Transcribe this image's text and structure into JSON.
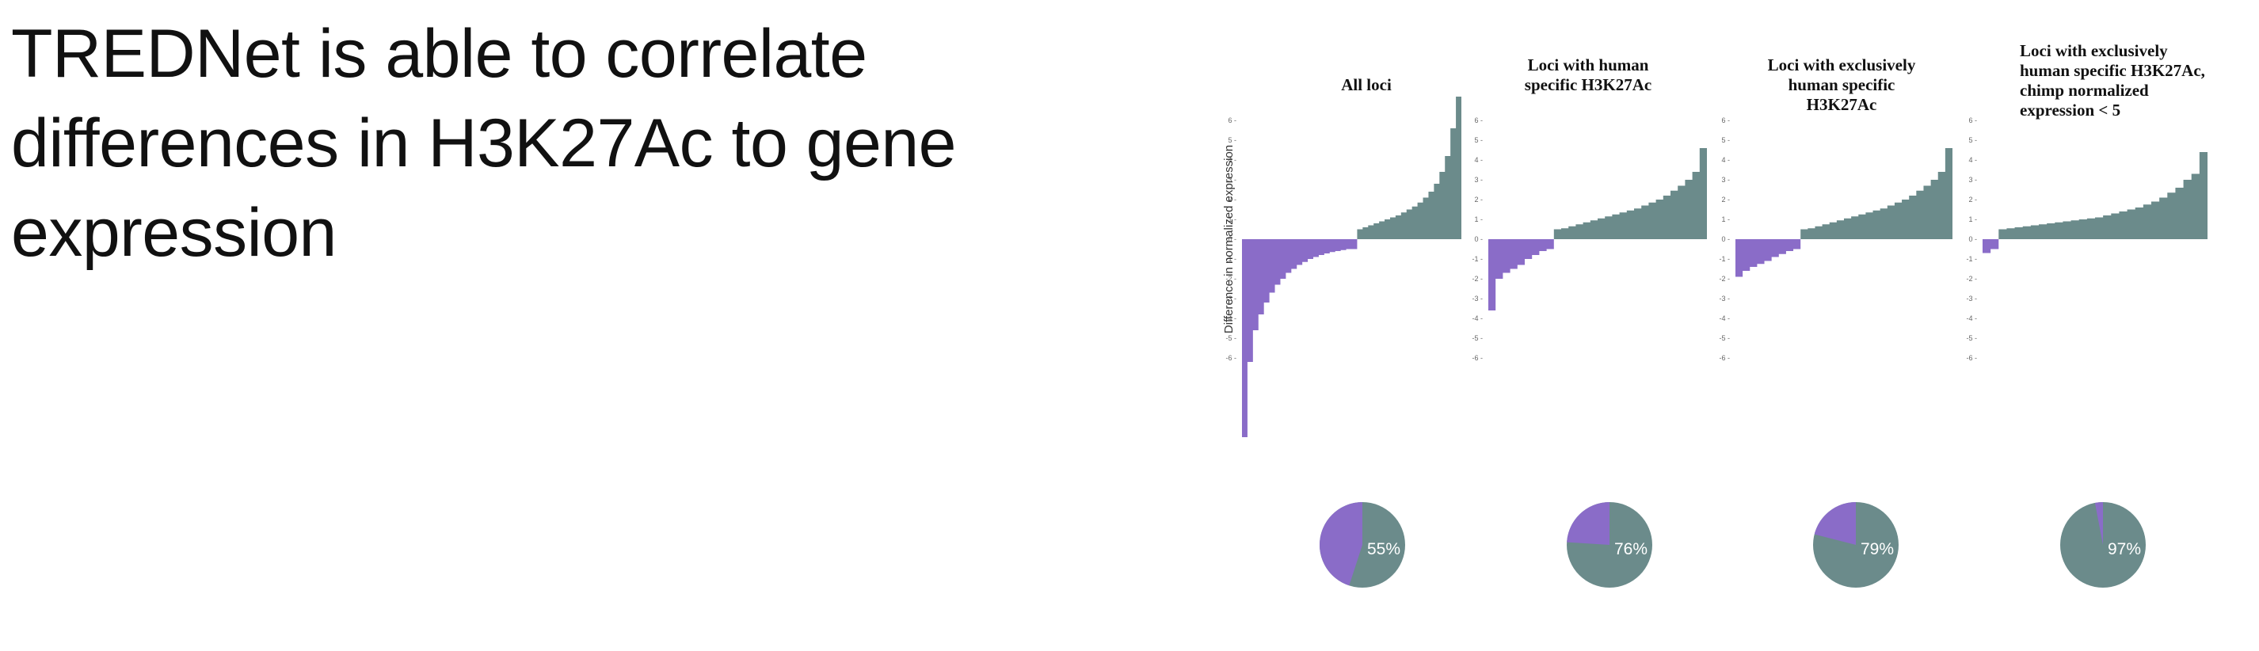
{
  "slide": {
    "title": "TREDNet is able to correlate\ndifferences in H3K27Ac to gene\nexpression"
  },
  "colors": {
    "negative": "#8a6cc8",
    "positive": "#6b8b8b",
    "tick_text": "#666666"
  },
  "chart_data": [
    {
      "type": "area",
      "title": "All loci",
      "ylabel": "Difference in normalized expression",
      "ylim": [
        -10,
        6
      ],
      "yticks": [
        6,
        5,
        4,
        3,
        2,
        1,
        0,
        -1,
        -2,
        -3,
        -4,
        -5,
        -6
      ],
      "series": [
        {
          "values": [
            -10,
            -6.2,
            -4.6,
            -3.8,
            -3.2,
            -2.7,
            -2.3,
            -2.0,
            -1.7,
            -1.5,
            -1.3,
            -1.15,
            -1.0,
            -0.9,
            -0.8,
            -0.72,
            -0.65,
            -0.6,
            -0.55,
            -0.5,
            -0.5
          ]
        },
        {
          "values": [
            0.5,
            0.6,
            0.7,
            0.8,
            0.9,
            1.0,
            1.1,
            1.2,
            1.35,
            1.5,
            1.65,
            1.85,
            2.1,
            2.4,
            2.8,
            3.4,
            4.2,
            5.6,
            7.2
          ]
        }
      ],
      "pie": {
        "values": [
          45,
          55
        ],
        "label": "55%"
      }
    },
    {
      "type": "area",
      "title": "Loci with human specific H3K27Ac",
      "ylim": [
        -10,
        6
      ],
      "yticks": [
        6,
        5,
        4,
        3,
        2,
        1,
        0,
        -1,
        -2,
        -3,
        -4,
        -5,
        -6
      ],
      "series": [
        {
          "values": [
            -3.6,
            -2.0,
            -1.7,
            -1.5,
            -1.3,
            -1.0,
            -0.8,
            -0.6,
            -0.5
          ]
        },
        {
          "values": [
            0.5,
            0.55,
            0.65,
            0.75,
            0.85,
            0.95,
            1.05,
            1.15,
            1.25,
            1.35,
            1.45,
            1.55,
            1.7,
            1.85,
            2.0,
            2.2,
            2.45,
            2.7,
            3.0,
            3.4,
            4.6
          ]
        }
      ],
      "pie": {
        "values": [
          24,
          76
        ],
        "label": "76%"
      }
    },
    {
      "type": "area",
      "title": "Loci with exclusively human specific H3K27Ac",
      "ylim": [
        -10,
        6
      ],
      "yticks": [
        6,
        5,
        4,
        3,
        2,
        1,
        0,
        -1,
        -2,
        -3,
        -4,
        -5,
        -6
      ],
      "series": [
        {
          "values": [
            -1.9,
            -1.6,
            -1.4,
            -1.25,
            -1.1,
            -0.9,
            -0.75,
            -0.6,
            -0.5
          ]
        },
        {
          "values": [
            0.5,
            0.55,
            0.65,
            0.75,
            0.85,
            0.95,
            1.05,
            1.15,
            1.25,
            1.35,
            1.45,
            1.55,
            1.7,
            1.85,
            2.0,
            2.2,
            2.45,
            2.7,
            3.0,
            3.4,
            4.6
          ]
        }
      ],
      "pie": {
        "values": [
          21,
          79
        ],
        "label": "79%"
      }
    },
    {
      "type": "area",
      "title": "Loci with exclusively human specific H3K27Ac, chimp normalized expression < 5",
      "ylim": [
        -10,
        6
      ],
      "yticks": [
        6,
        5,
        4,
        3,
        2,
        1,
        0,
        -1,
        -2,
        -3,
        -4,
        -5,
        -6
      ],
      "series": [
        {
          "values": [
            -0.7,
            -0.5
          ]
        },
        {
          "values": [
            0.5,
            0.55,
            0.6,
            0.65,
            0.7,
            0.75,
            0.8,
            0.85,
            0.9,
            0.95,
            1.0,
            1.05,
            1.1,
            1.2,
            1.3,
            1.4,
            1.5,
            1.6,
            1.75,
            1.9,
            2.1,
            2.35,
            2.6,
            3.0,
            3.3,
            4.4
          ]
        }
      ],
      "pie": {
        "values": [
          3,
          97
        ],
        "label": "97%"
      }
    }
  ]
}
